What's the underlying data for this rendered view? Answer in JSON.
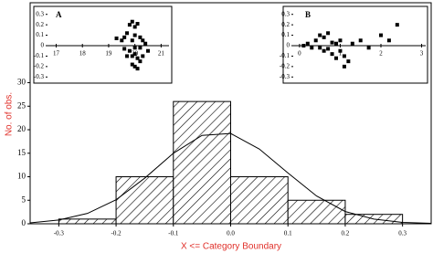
{
  "chart_data": [
    {
      "type": "histogram",
      "xlabel": "X <= Category Boundary",
      "ylabel": "No. of obs.",
      "bins": [
        -0.3,
        -0.2,
        -0.1,
        0,
        0.1,
        0.2,
        0.3
      ],
      "values": [
        1,
        10,
        26,
        10,
        5,
        2
      ],
      "curve": {
        "x": [
          -0.35,
          -0.3,
          -0.25,
          -0.2,
          -0.15,
          -0.1,
          -0.05,
          0,
          0.05,
          0.1,
          0.15,
          0.2,
          0.25,
          0.3,
          0.35
        ],
        "values": [
          0.2,
          0.8,
          2.2,
          5.1,
          9.7,
          15.0,
          18.8,
          19.2,
          15.9,
          10.8,
          5.9,
          2.6,
          1.0,
          0.3,
          0.1
        ]
      },
      "xlim": [
        -0.35,
        0.35
      ],
      "ylim": [
        0,
        47
      ],
      "xticks": [
        -0.3,
        -0.2,
        -0.1,
        {
          "value": 0,
          "label": "0.0"
        },
        0.1,
        0.2,
        0.3
      ],
      "yticks": [
        0,
        5,
        10,
        15,
        20,
        25,
        30
      ],
      "color": "#000000"
    },
    {
      "type": "scatter",
      "label": "A",
      "x": [
        19.3,
        19.5,
        19.6,
        19.7,
        19.8,
        19.9,
        20.0,
        20.1,
        20.0,
        19.9,
        20.2,
        20.3,
        20.4,
        19.8,
        19.9,
        20.0,
        20.1,
        20.2,
        20.0,
        19.9,
        19.7,
        20.1,
        20.3,
        20.5,
        19.6,
        20.2,
        20.0
      ],
      "values": [
        0.07,
        0.05,
        0.08,
        0.12,
        0.2,
        0.23,
        0.18,
        0.21,
        0.1,
        0.05,
        0.08,
        0.05,
        0.02,
        -0.05,
        -0.1,
        -0.08,
        -0.12,
        -0.15,
        -0.2,
        -0.18,
        -0.1,
        -0.22,
        -0.1,
        -0.05,
        -0.03,
        -0.02,
        -0.02
      ],
      "xlim": [
        16.6,
        21.3
      ],
      "ylim": [
        -0.35,
        0.35
      ],
      "xticks": [
        17,
        18,
        19,
        20,
        21
      ],
      "yticks": [
        0.3,
        0.2,
        0.1,
        0,
        -0.1,
        -0.2,
        -0.3
      ]
    },
    {
      "type": "scatter",
      "label": "B",
      "x": [
        0.1,
        0.2,
        0.3,
        0.4,
        0.5,
        0.6,
        0.7,
        0.8,
        0.9,
        1.0,
        1.1,
        1.2,
        0.9,
        0.8,
        0.6,
        0.5,
        1.0,
        1.3,
        1.5,
        1.7,
        2.0,
        2.2,
        2.4,
        1.1,
        0.7
      ],
      "values": [
        0,
        0.02,
        -0.02,
        0.05,
        0.1,
        0.08,
        0.12,
        0.03,
        0.02,
        -0.05,
        -0.1,
        -0.15,
        -0.12,
        -0.08,
        -0.05,
        -0.02,
        0.05,
        0.02,
        0.05,
        -0.02,
        0.1,
        0.05,
        0.2,
        -0.2,
        -0.03
      ],
      "xlim": [
        -0.2,
        3.1
      ],
      "ylim": [
        -0.35,
        0.35
      ],
      "xticks": [
        0,
        1,
        2,
        3
      ],
      "yticks": [
        0.3,
        0.2,
        0.1,
        0,
        -0.1,
        -0.2,
        -0.3
      ]
    }
  ]
}
